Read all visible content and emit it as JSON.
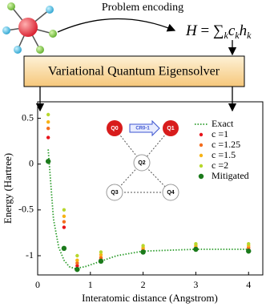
{
  "header": {
    "encoding": "Problem encoding",
    "formula": {
      "lhs": "H",
      "eq": "=",
      "sum": "∑",
      "sub": "k",
      "c": "c",
      "h": "h"
    },
    "box": "Variational Quantum Eigensolver"
  },
  "inset": {
    "nodes": [
      "Q0",
      "Q1",
      "Q2",
      "Q3",
      "Q4"
    ],
    "gate": "CR0-1"
  },
  "chart_data": {
    "type": "scatter",
    "x_label": "Interatomic distance (Angstrom)",
    "y_label": "Energy (Hartree)",
    "x": [
      0.2,
      0.5,
      0.75,
      1.2,
      2,
      3,
      4
    ],
    "xlim": [
      0,
      4.27
    ],
    "ylim": [
      -1.21,
      0.68
    ],
    "xticks": [
      0,
      1,
      2,
      3,
      4
    ],
    "yticks": [
      -1,
      -0.5,
      0,
      0.5
    ],
    "series": [
      {
        "name": "Exact",
        "color": "#2e9e2e",
        "line": true,
        "x": [
          0.2,
          0.3,
          0.4,
          0.5,
          0.6,
          0.7,
          0.75,
          0.8,
          0.9,
          1.0,
          1.2,
          1.5,
          2,
          2.5,
          3,
          4
        ],
        "values": [
          0.16,
          -0.6,
          -0.91,
          -1.05,
          -1.12,
          -1.14,
          -1.14,
          -1.13,
          -1.12,
          -1.1,
          -1.06,
          -1.0,
          -0.95,
          -0.94,
          -0.93,
          -0.93
        ]
      },
      {
        "name": "c =1",
        "color": "#e8141c",
        "values": [
          0.29,
          -0.69,
          -1.11,
          -1.04,
          -0.95,
          -0.93,
          -0.93
        ]
      },
      {
        "name": "c =1.25",
        "color": "#f46d1e",
        "values": [
          0.39,
          -0.63,
          -1.08,
          -1.02,
          -0.93,
          -0.91,
          -0.91
        ]
      },
      {
        "name": "c =1.5",
        "color": "#f7b316",
        "values": [
          0.46,
          -0.57,
          -1.05,
          -0.99,
          -0.91,
          -0.89,
          -0.89
        ]
      },
      {
        "name": "c =2",
        "color": "#b7d72c",
        "values": [
          0.54,
          -0.5,
          -1.0,
          -0.96,
          -0.89,
          -0.87,
          -0.87
        ]
      },
      {
        "name": "Mitigated",
        "color": "#1b7a1b",
        "values": [
          0.03,
          -0.92,
          -1.15,
          -1.06,
          -0.96,
          -0.93,
          -0.95
        ]
      }
    ]
  }
}
